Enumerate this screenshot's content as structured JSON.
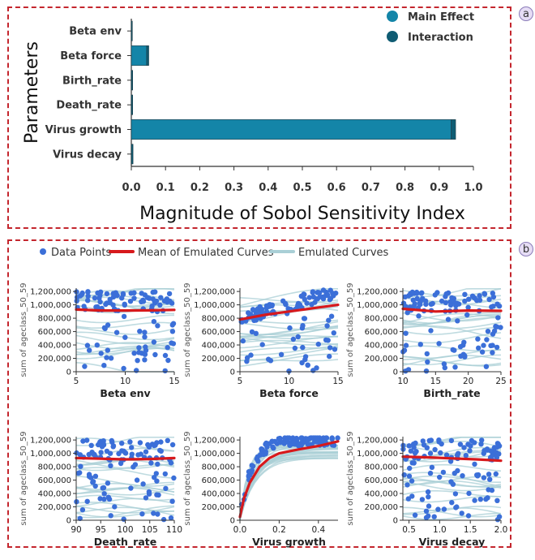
{
  "panel_a": {
    "badge": "a",
    "chart_data": {
      "type": "bar",
      "orientation": "horizontal",
      "stacked": true,
      "categories": [
        "Beta env",
        "Beta force",
        "Birth_rate",
        "Death_rate",
        "Virus growth",
        "Virus decay"
      ],
      "series": [
        {
          "name": "Main Effect",
          "values": [
            0.0,
            0.045,
            0.0,
            0.0,
            0.935,
            0.0
          ],
          "color": "#1485a8"
        },
        {
          "name": "Interaction",
          "values": [
            0.003,
            0.006,
            0.004,
            0.004,
            0.013,
            0.005
          ],
          "color": "#0f5c73"
        }
      ],
      "xlabel": "Magnitude of Sobol Sensitivity Index",
      "ylabel": "Parameters",
      "xlim": [
        0,
        1.0
      ],
      "xticks": [
        "0.0",
        "0.1",
        "0.2",
        "0.3",
        "0.4",
        "0.5",
        "0.6",
        "0.7",
        "0.8",
        "0.9",
        "1.0"
      ],
      "grid": false,
      "legend_position": "top-right"
    }
  },
  "panel_b": {
    "badge": "b",
    "legend": [
      {
        "label": "Data Points",
        "kind": "dot",
        "color": "#3b6fd8"
      },
      {
        "label": "Mean of Emulated Curves",
        "kind": "line",
        "color": "#d7191c"
      },
      {
        "label": "Emulated Curves",
        "kind": "line",
        "color": "#a9cfd6"
      }
    ],
    "chart_data": [
      {
        "type": "scatter",
        "xlabel": "Beta env",
        "ylabel": "sum of ageclass_50_59",
        "xlim": [
          5,
          15
        ],
        "xticks": [
          "5",
          "10",
          "15"
        ],
        "ylim": [
          0,
          1250000
        ],
        "yticks": [
          "0",
          "200,000",
          "400,000",
          "600,000",
          "800,000",
          "1,000,000",
          "1,200,000"
        ],
        "mean_curve": {
          "x": [
            5,
            7.5,
            10,
            12.5,
            15
          ],
          "y": [
            930000,
            915000,
            915000,
            918000,
            925000
          ]
        },
        "pattern": "flat"
      },
      {
        "type": "scatter",
        "xlabel": "Beta force",
        "ylabel": "sum of ageclass_50_59",
        "xlim": [
          5,
          15
        ],
        "xticks": [
          "5",
          "10",
          "15"
        ],
        "ylim": [
          0,
          1250000
        ],
        "yticks": [
          "0",
          "200,000",
          "400,000",
          "600,000",
          "800,000",
          "1,000,000",
          "1,200,000"
        ],
        "mean_curve": {
          "x": [
            5,
            7.5,
            10,
            12.5,
            15
          ],
          "y": [
            780000,
            850000,
            900000,
            950000,
            1000000
          ]
        },
        "pattern": "rising"
      },
      {
        "type": "scatter",
        "xlabel": "Birth_rate",
        "ylabel": "sum of ageclass_50_59",
        "xlim": [
          10,
          25
        ],
        "xticks": [
          "10",
          "15",
          "20",
          "25"
        ],
        "ylim": [
          0,
          1250000
        ],
        "yticks": [
          "0",
          "200,000",
          "400,000",
          "600,000",
          "800,000",
          "1,000,000",
          "1,200,000"
        ],
        "mean_curve": {
          "x": [
            10,
            15,
            20,
            25
          ],
          "y": [
            940000,
            900000,
            915000,
            910000
          ]
        },
        "pattern": "flat"
      },
      {
        "type": "scatter",
        "xlabel": "Death_rate",
        "ylabel": "sum of ageclass_50_59",
        "xlim": [
          90,
          110
        ],
        "xticks": [
          "90",
          "95",
          "100",
          "105",
          "110"
        ],
        "ylim": [
          0,
          1250000
        ],
        "yticks": [
          "0",
          "200,000",
          "400,000",
          "600,000",
          "800,000",
          "1,000,000",
          "1,200,000"
        ],
        "mean_curve": {
          "x": [
            90,
            95,
            100,
            105,
            110
          ],
          "y": [
            930000,
            920000,
            910000,
            915000,
            930000
          ]
        },
        "pattern": "flat"
      },
      {
        "type": "scatter",
        "xlabel": "Virus growth",
        "ylabel": "sum of ageclass_50_59",
        "xlim": [
          0,
          0.5
        ],
        "xticks": [
          "0.0",
          "0.2",
          "0.4"
        ],
        "ylim": [
          0,
          1250000
        ],
        "yticks": [
          "0",
          "200,000",
          "400,000",
          "600,000",
          "800,000",
          "1,000,000",
          "1,200,000"
        ],
        "mean_curve": {
          "x": [
            0.0,
            0.02,
            0.05,
            0.1,
            0.15,
            0.2,
            0.3,
            0.4,
            0.5
          ],
          "y": [
            50000,
            320000,
            560000,
            800000,
            930000,
            1000000,
            1060000,
            1110000,
            1180000
          ]
        },
        "pattern": "saturating"
      },
      {
        "type": "scatter",
        "xlabel": "Virus decay",
        "ylabel": "sum of ageclass_50_59",
        "xlim": [
          0.4,
          2.0
        ],
        "xticks": [
          "0.5",
          "1.0",
          "1.5",
          "2.0"
        ],
        "ylim": [
          0,
          1250000
        ],
        "yticks": [
          "0",
          "200,000",
          "400,000",
          "600,000",
          "800,000",
          "1,000,000",
          "1,200,000"
        ],
        "mean_curve": {
          "x": [
            0.4,
            0.8,
            1.2,
            1.6,
            2.0
          ],
          "y": [
            950000,
            940000,
            925000,
            910000,
            890000
          ]
        },
        "pattern": "flat"
      }
    ]
  }
}
